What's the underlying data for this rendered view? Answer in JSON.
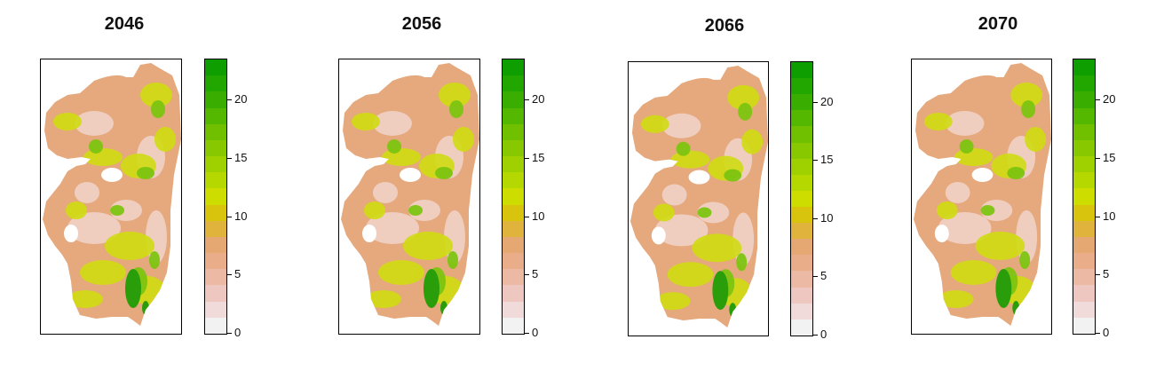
{
  "panels": [
    {
      "title": "2046"
    },
    {
      "title": "2056"
    },
    {
      "title": "2066"
    },
    {
      "title": "2070"
    }
  ],
  "legend": {
    "ticks": [
      "0",
      "5",
      "10",
      "15",
      "20"
    ],
    "tick_values": [
      0,
      5,
      10,
      15,
      20
    ],
    "max_value": 23.5,
    "bins": [
      "#f2f2f2",
      "#f0dada",
      "#eec8c0",
      "#ebb9a4",
      "#e9ad8a",
      "#e6a873",
      "#dfb33c",
      "#d8c40c",
      "#cedd00",
      "#b5d800",
      "#9fd000",
      "#88c800",
      "#70c000",
      "#55b800",
      "#3aae00",
      "#22a600",
      "#0f9e00"
    ]
  },
  "colors": {
    "tan": "#e5a97d",
    "pink": "#efd2c8",
    "yellow_green": "#cfdb12",
    "green": "#7cc411",
    "dark_green": "#2a9d0a"
  }
}
